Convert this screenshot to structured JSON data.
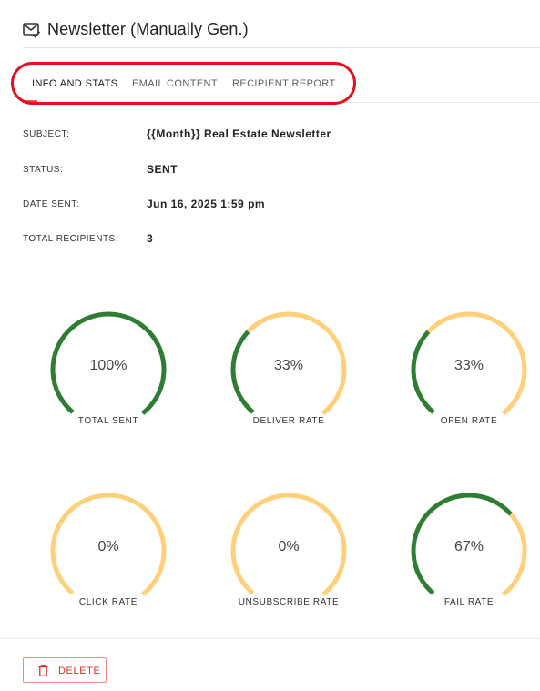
{
  "header": {
    "title": "Newsletter (Manually Gen.)",
    "icon": "mail-check-icon"
  },
  "tabs": [
    {
      "label": "INFO AND STATS",
      "active": true
    },
    {
      "label": "EMAIL CONTENT",
      "active": false
    },
    {
      "label": "RECIPIENT REPORT",
      "active": false
    }
  ],
  "info": [
    {
      "label": "SUBJECT:",
      "value": "{{Month}} Real Estate Newsletter"
    },
    {
      "label": "STATUS:",
      "value": "SENT"
    },
    {
      "label": "DATE SENT:",
      "value": "Jun 16, 2025 1:59 pm"
    },
    {
      "label": "TOTAL RECIPIENTS:",
      "value": "3"
    }
  ],
  "stats": [
    {
      "label": "TOTAL SENT",
      "display": "100%",
      "fraction": 1.0
    },
    {
      "label": "DELIVER RATE",
      "display": "33%",
      "fraction": 0.33
    },
    {
      "label": "OPEN RATE",
      "display": "33%",
      "fraction": 0.33
    },
    {
      "label": "CLICK RATE",
      "display": "0%",
      "fraction": 0.0
    },
    {
      "label": "UNSUBSCRIBE RATE",
      "display": "0%",
      "fraction": 0.0
    },
    {
      "label": "FAIL RATE",
      "display": "67%",
      "fraction": 0.67
    }
  ],
  "footer": {
    "delete_label": "DELETE"
  },
  "colors": {
    "accent": "#e2554a",
    "gauge_fill": "#2e7d32",
    "gauge_track": "#ffcf7a",
    "delete": "#d9322a",
    "highlight": "#e0101d"
  }
}
